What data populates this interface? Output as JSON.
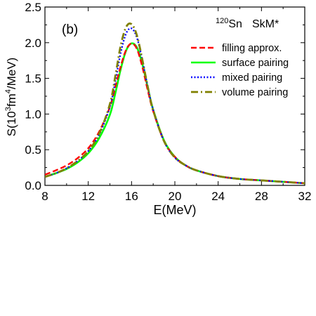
{
  "chart_data": {
    "type": "line",
    "panel_label": "(b)",
    "nucleus": {
      "mass_number": "120",
      "symbol": "Sn",
      "interaction": "SkM*"
    },
    "xlabel": "E(MeV)",
    "ylabel": {
      "prefix": "S(10",
      "sup1": "3",
      "mid": "fm",
      "sup2": "4",
      "suffix": "/MeV)"
    },
    "xlim": [
      8,
      32
    ],
    "ylim": [
      0,
      2.5
    ],
    "xticks": [
      8,
      12,
      16,
      20,
      24,
      28,
      32
    ],
    "xtick_labels": [
      "8",
      "12",
      "16",
      "20",
      "24",
      "28",
      "32"
    ],
    "yticks": [
      0,
      0.5,
      1.0,
      1.5,
      2.0,
      2.5
    ],
    "ytick_labels": [
      "0.0",
      "0.5",
      "1.0",
      "1.5",
      "2.0",
      "2.5"
    ],
    "grid": false,
    "legend_position": "top-right",
    "x": [
      8,
      9,
      10,
      11,
      12,
      13,
      14,
      14.5,
      15,
      15.5,
      16,
      16.5,
      17,
      17.5,
      18,
      19,
      20,
      21,
      22,
      24,
      26,
      28,
      30,
      32
    ],
    "series": [
      {
        "name": "filling approx.",
        "color": "#ff0000",
        "dash": "dash",
        "values": [
          0.15,
          0.21,
          0.28,
          0.38,
          0.52,
          0.75,
          1.1,
          1.38,
          1.67,
          1.9,
          1.99,
          1.91,
          1.66,
          1.33,
          1.04,
          0.62,
          0.4,
          0.28,
          0.21,
          0.13,
          0.09,
          0.07,
          0.05,
          0.03
        ]
      },
      {
        "name": "surface pairing",
        "color": "#00ff00",
        "dash": "solid",
        "values": [
          0.12,
          0.17,
          0.23,
          0.32,
          0.45,
          0.66,
          0.99,
          1.29,
          1.63,
          1.89,
          1.99,
          1.93,
          1.7,
          1.37,
          1.06,
          0.63,
          0.4,
          0.28,
          0.21,
          0.13,
          0.09,
          0.07,
          0.05,
          0.03
        ]
      },
      {
        "name": "mixed pairing",
        "color": "#0000ff",
        "dash": "dot",
        "values": [
          0.12,
          0.17,
          0.24,
          0.34,
          0.48,
          0.71,
          1.1,
          1.46,
          1.86,
          2.13,
          2.2,
          2.07,
          1.75,
          1.38,
          1.06,
          0.62,
          0.39,
          0.28,
          0.21,
          0.13,
          0.09,
          0.07,
          0.05,
          0.03
        ]
      },
      {
        "name": "volume pairing",
        "color": "#808000",
        "dash": "dashdot",
        "values": [
          0.12,
          0.17,
          0.24,
          0.34,
          0.48,
          0.72,
          1.14,
          1.53,
          1.96,
          2.22,
          2.26,
          2.1,
          1.76,
          1.38,
          1.05,
          0.62,
          0.39,
          0.28,
          0.21,
          0.13,
          0.09,
          0.07,
          0.05,
          0.03
        ]
      }
    ]
  }
}
